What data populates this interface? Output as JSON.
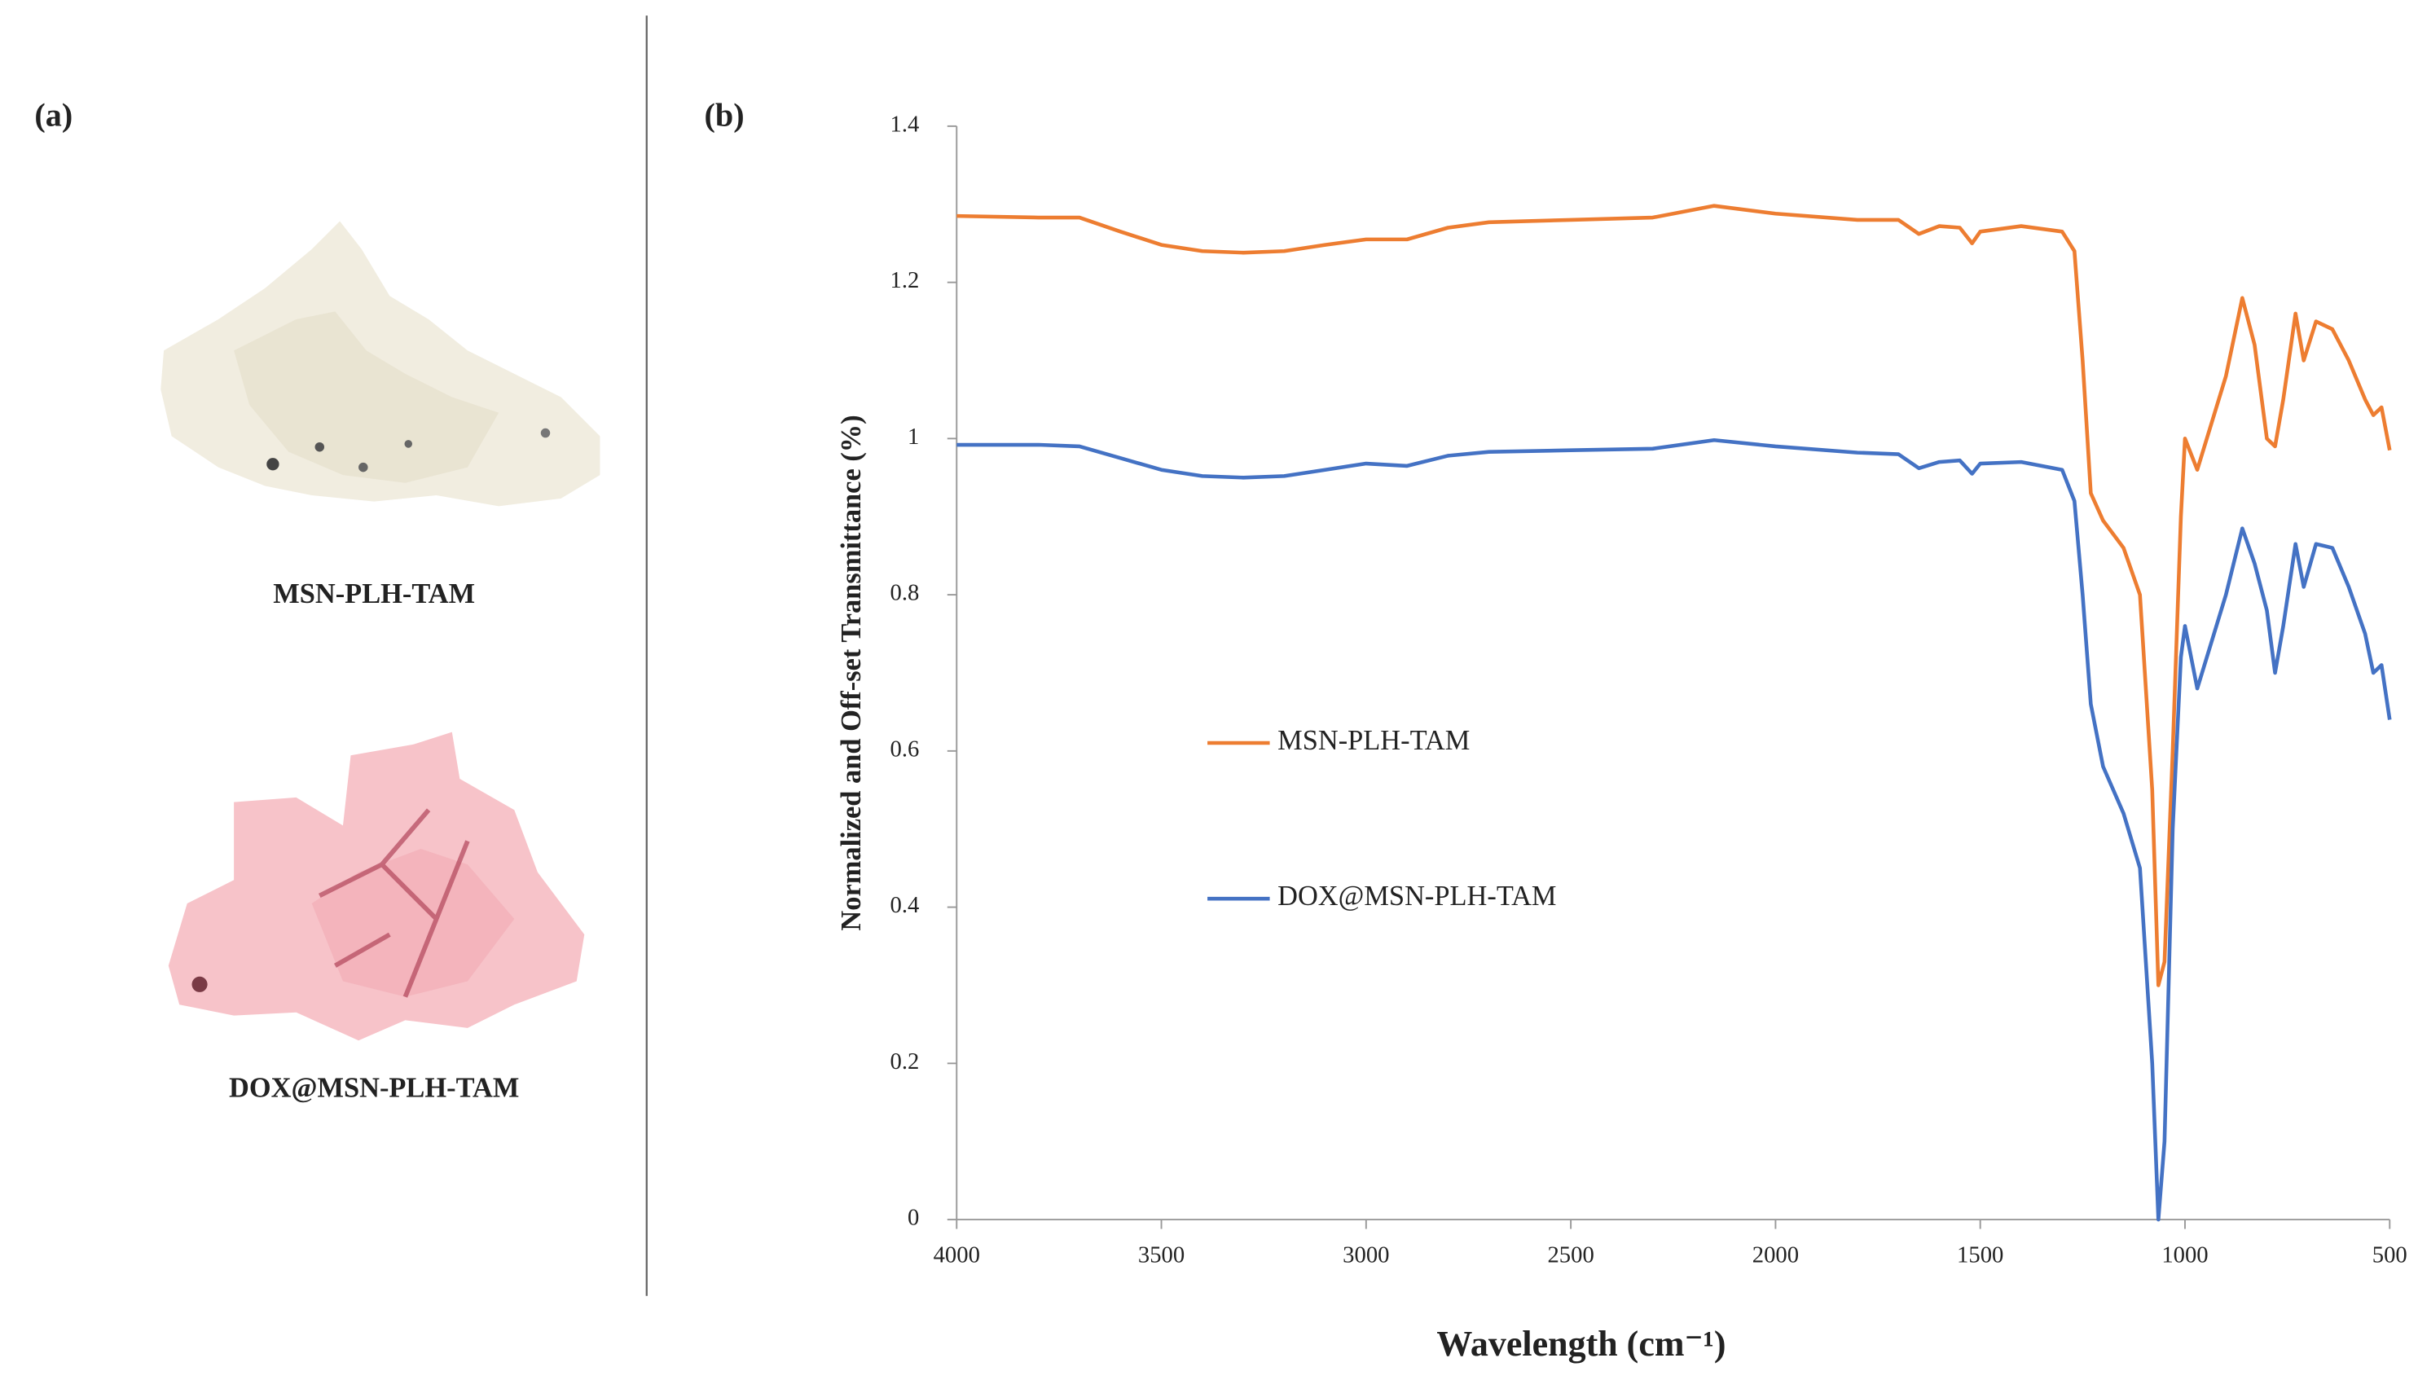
{
  "chart_data": {
    "type": "line",
    "panel_labels": [
      "(a)",
      "(b)"
    ],
    "sample_labels": [
      "MSN-PLH-TAM",
      "DOX@MSN-PLH-TAM"
    ],
    "xlabel": "Wavelength (cm⁻¹)",
    "ylabel": "Normalized  and Off-set Transmittance (%)",
    "xlim": [
      4000,
      500
    ],
    "ylim": [
      0,
      1.4
    ],
    "xticks": [
      4000,
      3500,
      3000,
      2500,
      2000,
      1500,
      1000,
      500
    ],
    "yticks": [
      0,
      0.2,
      0.4,
      0.6,
      0.8,
      1,
      1.2,
      1.4
    ],
    "x": [
      4000,
      3800,
      3700,
      3600,
      3500,
      3400,
      3300,
      3200,
      3100,
      3000,
      2900,
      2800,
      2700,
      2500,
      2300,
      2150,
      2000,
      1800,
      1700,
      1650,
      1600,
      1550,
      1520,
      1500,
      1400,
      1300,
      1270,
      1250,
      1230,
      1200,
      1150,
      1110,
      1080,
      1065,
      1050,
      1030,
      1010,
      1000,
      970,
      900,
      860,
      830,
      800,
      780,
      760,
      730,
      710,
      680,
      640,
      600,
      560,
      540,
      520,
      500
    ],
    "series": [
      {
        "name": "MSN-PLH-TAM",
        "color": "#ed7d31",
        "values": [
          1.285,
          1.283,
          1.283,
          1.265,
          1.248,
          1.24,
          1.238,
          1.24,
          1.248,
          1.255,
          1.255,
          1.27,
          1.277,
          1.28,
          1.283,
          1.298,
          1.288,
          1.28,
          1.28,
          1.262,
          1.272,
          1.27,
          1.25,
          1.265,
          1.272,
          1.265,
          1.24,
          1.1,
          0.93,
          0.895,
          0.86,
          0.8,
          0.55,
          0.3,
          0.33,
          0.6,
          0.9,
          1.0,
          0.96,
          1.08,
          1.18,
          1.12,
          1.0,
          0.99,
          1.05,
          1.16,
          1.1,
          1.15,
          1.14,
          1.1,
          1.05,
          1.03,
          1.04,
          0.985
        ]
      },
      {
        "name": "DOX@MSN-PLH-TAM",
        "color": "#4472c4",
        "values": [
          0.992,
          0.992,
          0.99,
          0.975,
          0.96,
          0.952,
          0.95,
          0.952,
          0.96,
          0.968,
          0.965,
          0.978,
          0.983,
          0.985,
          0.987,
          0.998,
          0.99,
          0.982,
          0.98,
          0.962,
          0.97,
          0.972,
          0.955,
          0.968,
          0.97,
          0.96,
          0.92,
          0.8,
          0.66,
          0.58,
          0.52,
          0.45,
          0.2,
          0.0,
          0.1,
          0.5,
          0.72,
          0.76,
          0.68,
          0.8,
          0.885,
          0.84,
          0.78,
          0.7,
          0.76,
          0.865,
          0.81,
          0.865,
          0.86,
          0.81,
          0.75,
          0.7,
          0.71,
          0.64
        ]
      }
    ]
  }
}
